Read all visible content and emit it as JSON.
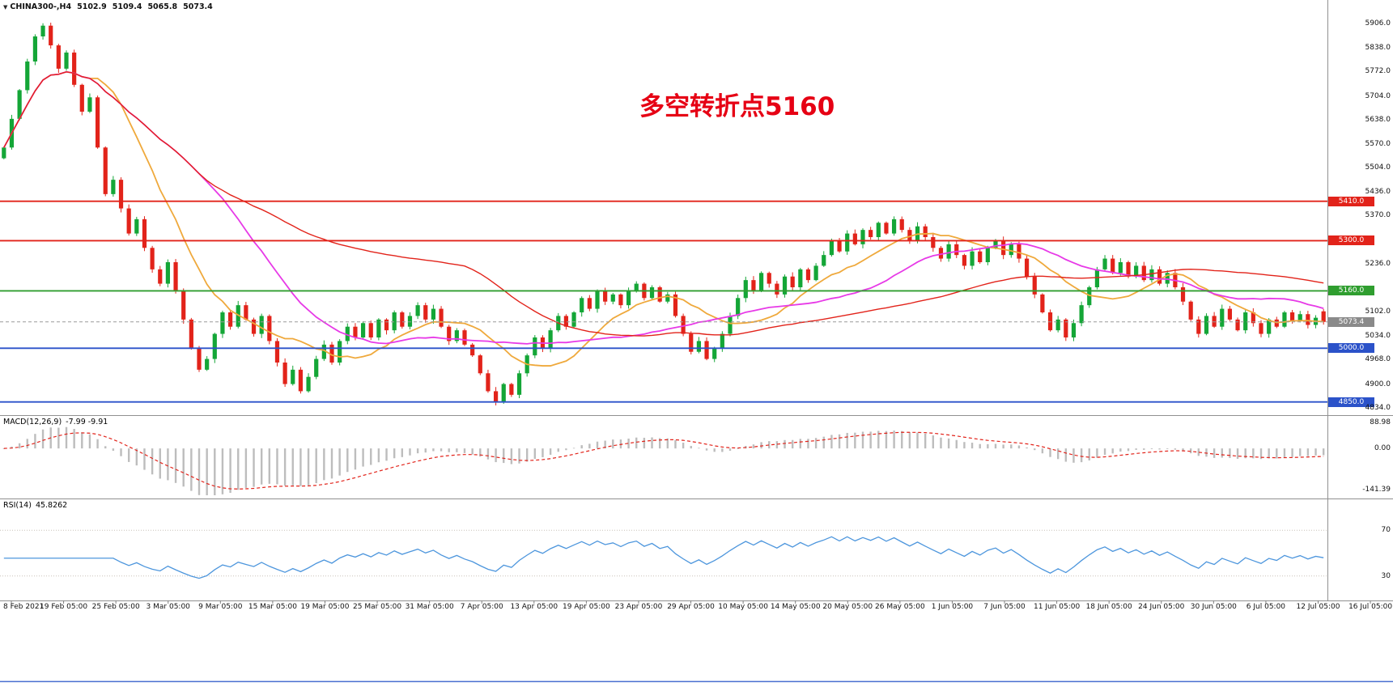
{
  "colors": {
    "background": "#ffffff",
    "up": "#14a637",
    "down": "#e2231a",
    "ma_fast": "#efa93c",
    "ma_mid": "#e73ae7",
    "ma_slow": "#e2231a",
    "macd_hist": "#bdbdbd",
    "macd_signal": "#e2231a",
    "rsi": "#4d96dd",
    "level_red": "#e2231a",
    "level_green": "#2f9e2f",
    "level_blue": "#2b52c9",
    "current_price": "#8a8a8a",
    "annotation": "#e60014",
    "separator": "#909090"
  },
  "header": {
    "symbol_period": "CHINA300-,H4",
    "open": "5102.9",
    "high": "5109.4",
    "low": "5065.8",
    "close": "5073.4"
  },
  "annotation": {
    "text": "多空转折点5160"
  },
  "price_axis": {
    "ticks": [
      {
        "value": 5906,
        "label": "5906.0"
      },
      {
        "value": 5838,
        "label": "5838.0"
      },
      {
        "value": 5772,
        "label": "5772.0"
      },
      {
        "value": 5704,
        "label": "5704.0"
      },
      {
        "value": 5638,
        "label": "5638.0"
      },
      {
        "value": 5570,
        "label": "5570.0"
      },
      {
        "value": 5504,
        "label": "5504.0"
      },
      {
        "value": 5436,
        "label": "5436.0"
      },
      {
        "value": 5370,
        "label": "5370.0"
      },
      {
        "value": 5236,
        "label": "5236.0"
      },
      {
        "value": 5102,
        "label": "5102.0"
      },
      {
        "value": 5034,
        "label": "5034.0"
      },
      {
        "value": 4968,
        "label": "4968.0"
      },
      {
        "value": 4900,
        "label": "4900.0"
      },
      {
        "value": 4834,
        "label": "4834.0"
      }
    ]
  },
  "levels": [
    {
      "price": 5410,
      "label": "5410.0",
      "type": "resistance",
      "color_key": "level_red"
    },
    {
      "price": 5300,
      "label": "5300.0",
      "type": "resistance",
      "color_key": "level_red"
    },
    {
      "price": 5160,
      "label": "5160.0",
      "type": "pivot",
      "color_key": "level_green"
    },
    {
      "price": 5000,
      "label": "5000.0",
      "type": "support",
      "color_key": "level_blue"
    },
    {
      "price": 4850,
      "label": "4850.0",
      "type": "support",
      "color_key": "level_blue"
    }
  ],
  "current_price": {
    "value": 5073.4,
    "label": "5073.4"
  },
  "macd_panel": {
    "label": "MACD(12,26,9)",
    "values": "-7.99 -9.91",
    "ticks": [
      {
        "value": 88.98,
        "label": "88.98"
      },
      {
        "value": 0,
        "label": "0.00"
      },
      {
        "value": -141.39,
        "label": "-141.39"
      }
    ]
  },
  "rsi_panel": {
    "label": "RSI(14)",
    "value": "45.8262",
    "levels": [
      {
        "value": 70,
        "label": "70"
      },
      {
        "value": 30,
        "label": "30"
      }
    ]
  },
  "time_axis": {
    "labels": [
      "8 Feb 2021",
      "19 Feb 05:00",
      "25 Feb 05:00",
      "3 Mar 05:00",
      "9 Mar 05:00",
      "15 Mar 05:00",
      "19 Mar 05:00",
      "25 Mar 05:00",
      "31 Mar 05:00",
      "7 Apr 05:00",
      "13 Apr 05:00",
      "19 Apr 05:00",
      "23 Apr 05:00",
      "29 Apr 05:00",
      "10 May 05:00",
      "14 May 05:00",
      "20 May 05:00",
      "26 May 05:00",
      "1 Jun 05:00",
      "7 Jun 05:00",
      "11 Jun 05:00",
      "18 Jun 05:00",
      "24 Jun 05:00",
      "30 Jun 05:00",
      "6 Jul 05:00",
      "12 Jul 05:00",
      "16 Jul 05:00"
    ]
  },
  "chart_data": {
    "type": "candlestick",
    "symbol": "CHINA300-",
    "timeframe": "H4",
    "x_range": [
      "8 Feb 2021",
      "16 Jul 05:00"
    ],
    "price_range": [
      4834,
      5906
    ],
    "last": {
      "open": 5102.9,
      "high": 5109.4,
      "low": 5065.8,
      "close": 5073.4
    },
    "closes": [
      5560,
      5640,
      5720,
      5800,
      5870,
      5900,
      5845,
      5780,
      5825,
      5735,
      5660,
      5700,
      5560,
      5430,
      5470,
      5390,
      5320,
      5360,
      5280,
      5220,
      5180,
      5240,
      5160,
      5080,
      5000,
      4940,
      4970,
      5040,
      5100,
      5060,
      5120,
      5080,
      5040,
      5090,
      5020,
      4960,
      4900,
      4940,
      4880,
      4920,
      4970,
      5010,
      4960,
      5020,
      5060,
      5030,
      5070,
      5030,
      5080,
      5050,
      5100,
      5060,
      5090,
      5120,
      5080,
      5110,
      5060,
      5020,
      5050,
      5010,
      4980,
      4930,
      4880,
      4850,
      4900,
      4870,
      4930,
      4980,
      5030,
      5000,
      5050,
      5090,
      5060,
      5100,
      5140,
      5110,
      5160,
      5130,
      5150,
      5120,
      5160,
      5180,
      5140,
      5170,
      5130,
      5150,
      5090,
      5040,
      4990,
      5020,
      4970,
      5000,
      5040,
      5090,
      5140,
      5190,
      5160,
      5210,
      5180,
      5150,
      5200,
      5170,
      5220,
      5190,
      5230,
      5260,
      5300,
      5270,
      5320,
      5290,
      5330,
      5310,
      5350,
      5320,
      5360,
      5330,
      5300,
      5340,
      5310,
      5280,
      5250,
      5290,
      5260,
      5230,
      5270,
      5240,
      5280,
      5300,
      5260,
      5290,
      5250,
      5200,
      5150,
      5100,
      5050,
      5080,
      5030,
      5070,
      5120,
      5170,
      5220,
      5250,
      5210,
      5240,
      5200,
      5230,
      5190,
      5220,
      5180,
      5210,
      5170,
      5130,
      5080,
      5040,
      5090,
      5060,
      5110,
      5080,
      5050,
      5100,
      5070,
      5040,
      5080,
      5060,
      5100,
      5075,
      5095,
      5065,
      5085,
      5073.4
    ],
    "overlays": [
      {
        "name": "ma-fast",
        "window": 12,
        "color_key": "ma_fast"
      },
      {
        "name": "ma-mid",
        "window": 26,
        "color_key": "ma_mid"
      },
      {
        "name": "ma-slow",
        "window": 60,
        "color_key": "ma_slow"
      }
    ],
    "indicators": [
      {
        "name": "MACD",
        "params": [
          12,
          26,
          9
        ],
        "last_values": [
          -7.99,
          -9.91
        ],
        "axis_range": [
          -141.39,
          88.98
        ]
      },
      {
        "name": "RSI",
        "params": [
          14
        ],
        "last_value": 45.8262,
        "levels": [
          70,
          30
        ]
      }
    ],
    "horizontal_lines": [
      5410,
      5300,
      5160,
      5000,
      4850
    ]
  }
}
